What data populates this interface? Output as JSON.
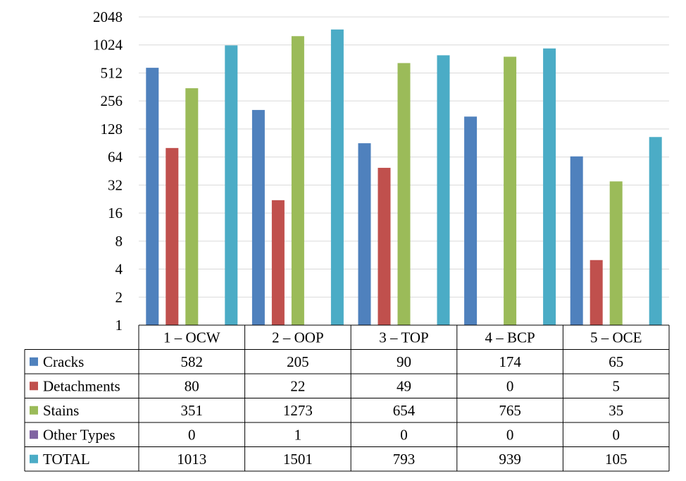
{
  "chart_data": {
    "type": "bar",
    "title": "",
    "xlabel": "",
    "ylabel": "",
    "y_scale": "log2",
    "ylim": [
      1,
      2048
    ],
    "y_ticks": [
      "1",
      "2",
      "4",
      "8",
      "16",
      "32",
      "64",
      "128",
      "256",
      "512",
      "1024",
      "2048"
    ],
    "grid": true,
    "legend": "data-table",
    "categories": [
      "1 – OCW",
      "2 – OOP",
      "3 – TOP",
      "4 – BCP",
      "5 – OCE"
    ],
    "series": [
      {
        "name": "Cracks",
        "color": "#4F81BD",
        "values": [
          582,
          205,
          90,
          174,
          65
        ],
        "labels": [
          "582",
          "205",
          "90",
          "174",
          "65"
        ]
      },
      {
        "name": "Detachments",
        "color": "#C0504D",
        "values": [
          80,
          22,
          49,
          0,
          5
        ],
        "labels": [
          "80",
          "22",
          "49",
          "0",
          "5"
        ]
      },
      {
        "name": "Stains",
        "color": "#9BBB59",
        "values": [
          351,
          1273,
          654,
          765,
          35
        ],
        "labels": [
          "351",
          "1273",
          "654",
          "765",
          "35"
        ]
      },
      {
        "name": "Other Types",
        "color": "#8064A2",
        "values": [
          0,
          1,
          0,
          0,
          0
        ],
        "labels": [
          "0",
          "1",
          "0",
          "0",
          "0"
        ]
      },
      {
        "name": "TOTAL",
        "color": "#4BACC6",
        "values": [
          1013,
          1501,
          793,
          939,
          105
        ],
        "labels": [
          "1013",
          "1501",
          "793",
          "939",
          "105"
        ]
      }
    ]
  }
}
